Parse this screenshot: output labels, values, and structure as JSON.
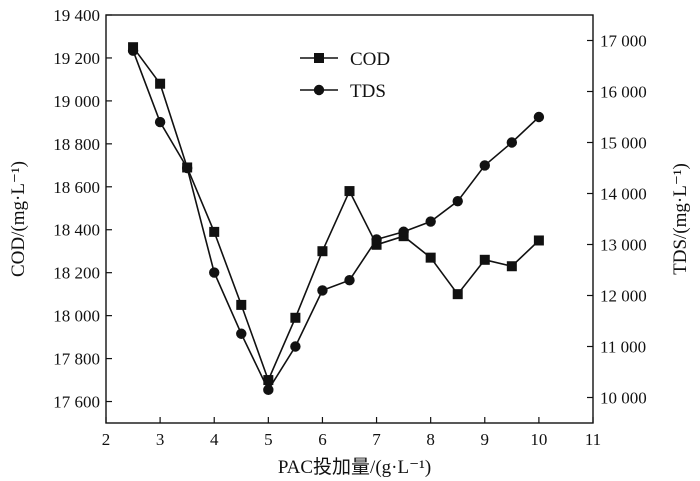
{
  "chart_data": {
    "type": "line",
    "x_axis": {
      "label": "PAC投加量/(g·L⁻¹)",
      "range": [
        2,
        11
      ],
      "ticks": [
        2,
        3,
        4,
        5,
        6,
        7,
        8,
        9,
        10,
        11
      ],
      "tick_labels": [
        "2",
        "3",
        "4",
        "5",
        "6",
        "7",
        "8",
        "9",
        "10",
        "11"
      ]
    },
    "y_left": {
      "label": "COD/(mg·L⁻¹)",
      "range": [
        17500,
        19400
      ],
      "ticks": [
        17600,
        17800,
        18000,
        18200,
        18400,
        18600,
        18800,
        19000,
        19200,
        19400
      ],
      "tick_labels": [
        "17 600",
        "17 800",
        "18 000",
        "18 200",
        "18 400",
        "18 600",
        "18 800",
        "19 000",
        "19 200",
        "19 400"
      ]
    },
    "y_right": {
      "label": "TDS/(mg·L⁻¹)",
      "range": [
        9500,
        17500
      ],
      "ticks": [
        10000,
        11000,
        12000,
        13000,
        14000,
        15000,
        16000,
        17000
      ],
      "tick_labels": [
        "10 000",
        "11 000",
        "12 000",
        "13 000",
        "14 000",
        "15 000",
        "16 000",
        "17 000"
      ]
    },
    "legend_position": "top-center",
    "grid": false,
    "series": [
      {
        "name": "COD",
        "axis": "left",
        "marker": "square",
        "color": "#111111",
        "x": [
          2.5,
          3,
          3.5,
          4,
          4.5,
          5,
          5.5,
          6,
          6.5,
          7,
          7.5,
          8,
          8.5,
          9,
          9.5,
          10
        ],
        "y": [
          19250,
          19080,
          18690,
          18390,
          18050,
          17700,
          17990,
          18300,
          18580,
          18330,
          18370,
          18270,
          18100,
          18260,
          18230,
          18350
        ]
      },
      {
        "name": "TDS",
        "axis": "right",
        "marker": "circle",
        "color": "#111111",
        "x": [
          2.5,
          3,
          3.5,
          4,
          4.5,
          5,
          5.5,
          6,
          6.5,
          7,
          7.5,
          8,
          8.5,
          9,
          9.5,
          10
        ],
        "y": [
          16800,
          15400,
          14500,
          12450,
          11250,
          10150,
          11000,
          12100,
          12300,
          13100,
          13250,
          13450,
          13850,
          14550,
          15000,
          15500
        ]
      }
    ]
  }
}
